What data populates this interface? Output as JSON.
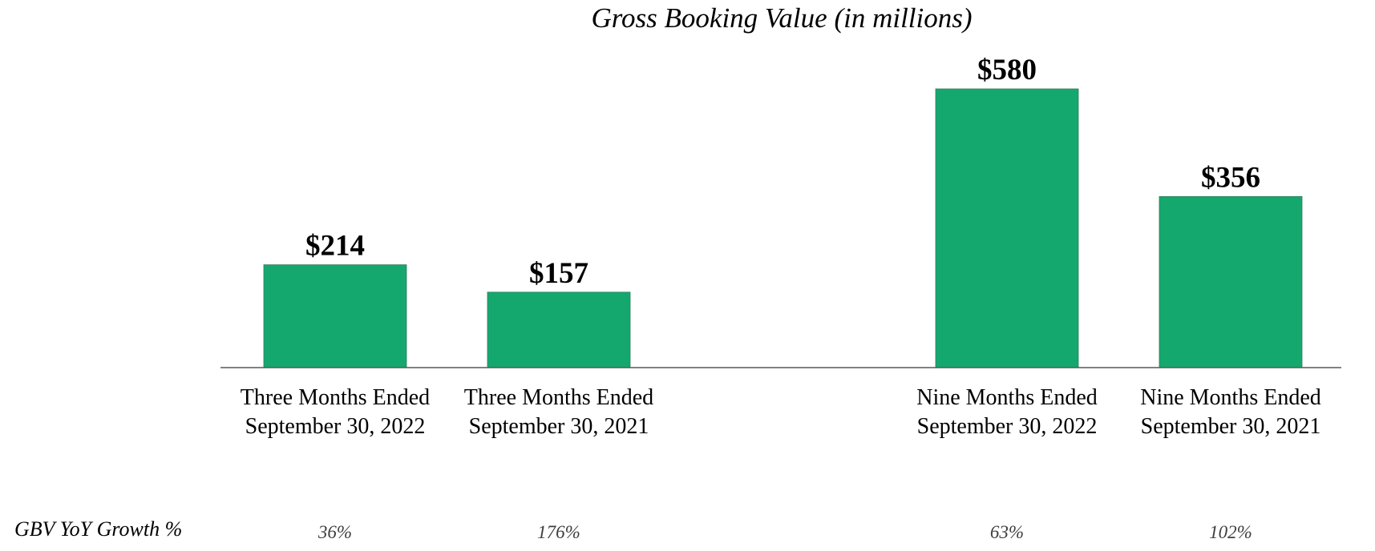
{
  "chart_data": {
    "type": "bar",
    "title": "Gross Booking Value (in millions)",
    "xlabel": "",
    "ylabel": "",
    "ylim": [
      0,
      580
    ],
    "grid": false,
    "categories": [
      [
        "Three Months Ended",
        "September 30, 2022"
      ],
      [
        "Three Months Ended",
        "September 30, 2021"
      ],
      [
        "Nine Months Ended",
        "September 30, 2022"
      ],
      [
        "Nine Months Ended",
        "September 30, 2021"
      ]
    ],
    "values": [
      214,
      157,
      580,
      356
    ],
    "value_labels": [
      "$214",
      "$157",
      "$580",
      "$356"
    ],
    "bar_color": "#15a86e",
    "growth_row": {
      "label": "GBV YoY Growth %",
      "values": [
        "36%",
        "176%",
        "63%",
        "102%"
      ]
    }
  }
}
